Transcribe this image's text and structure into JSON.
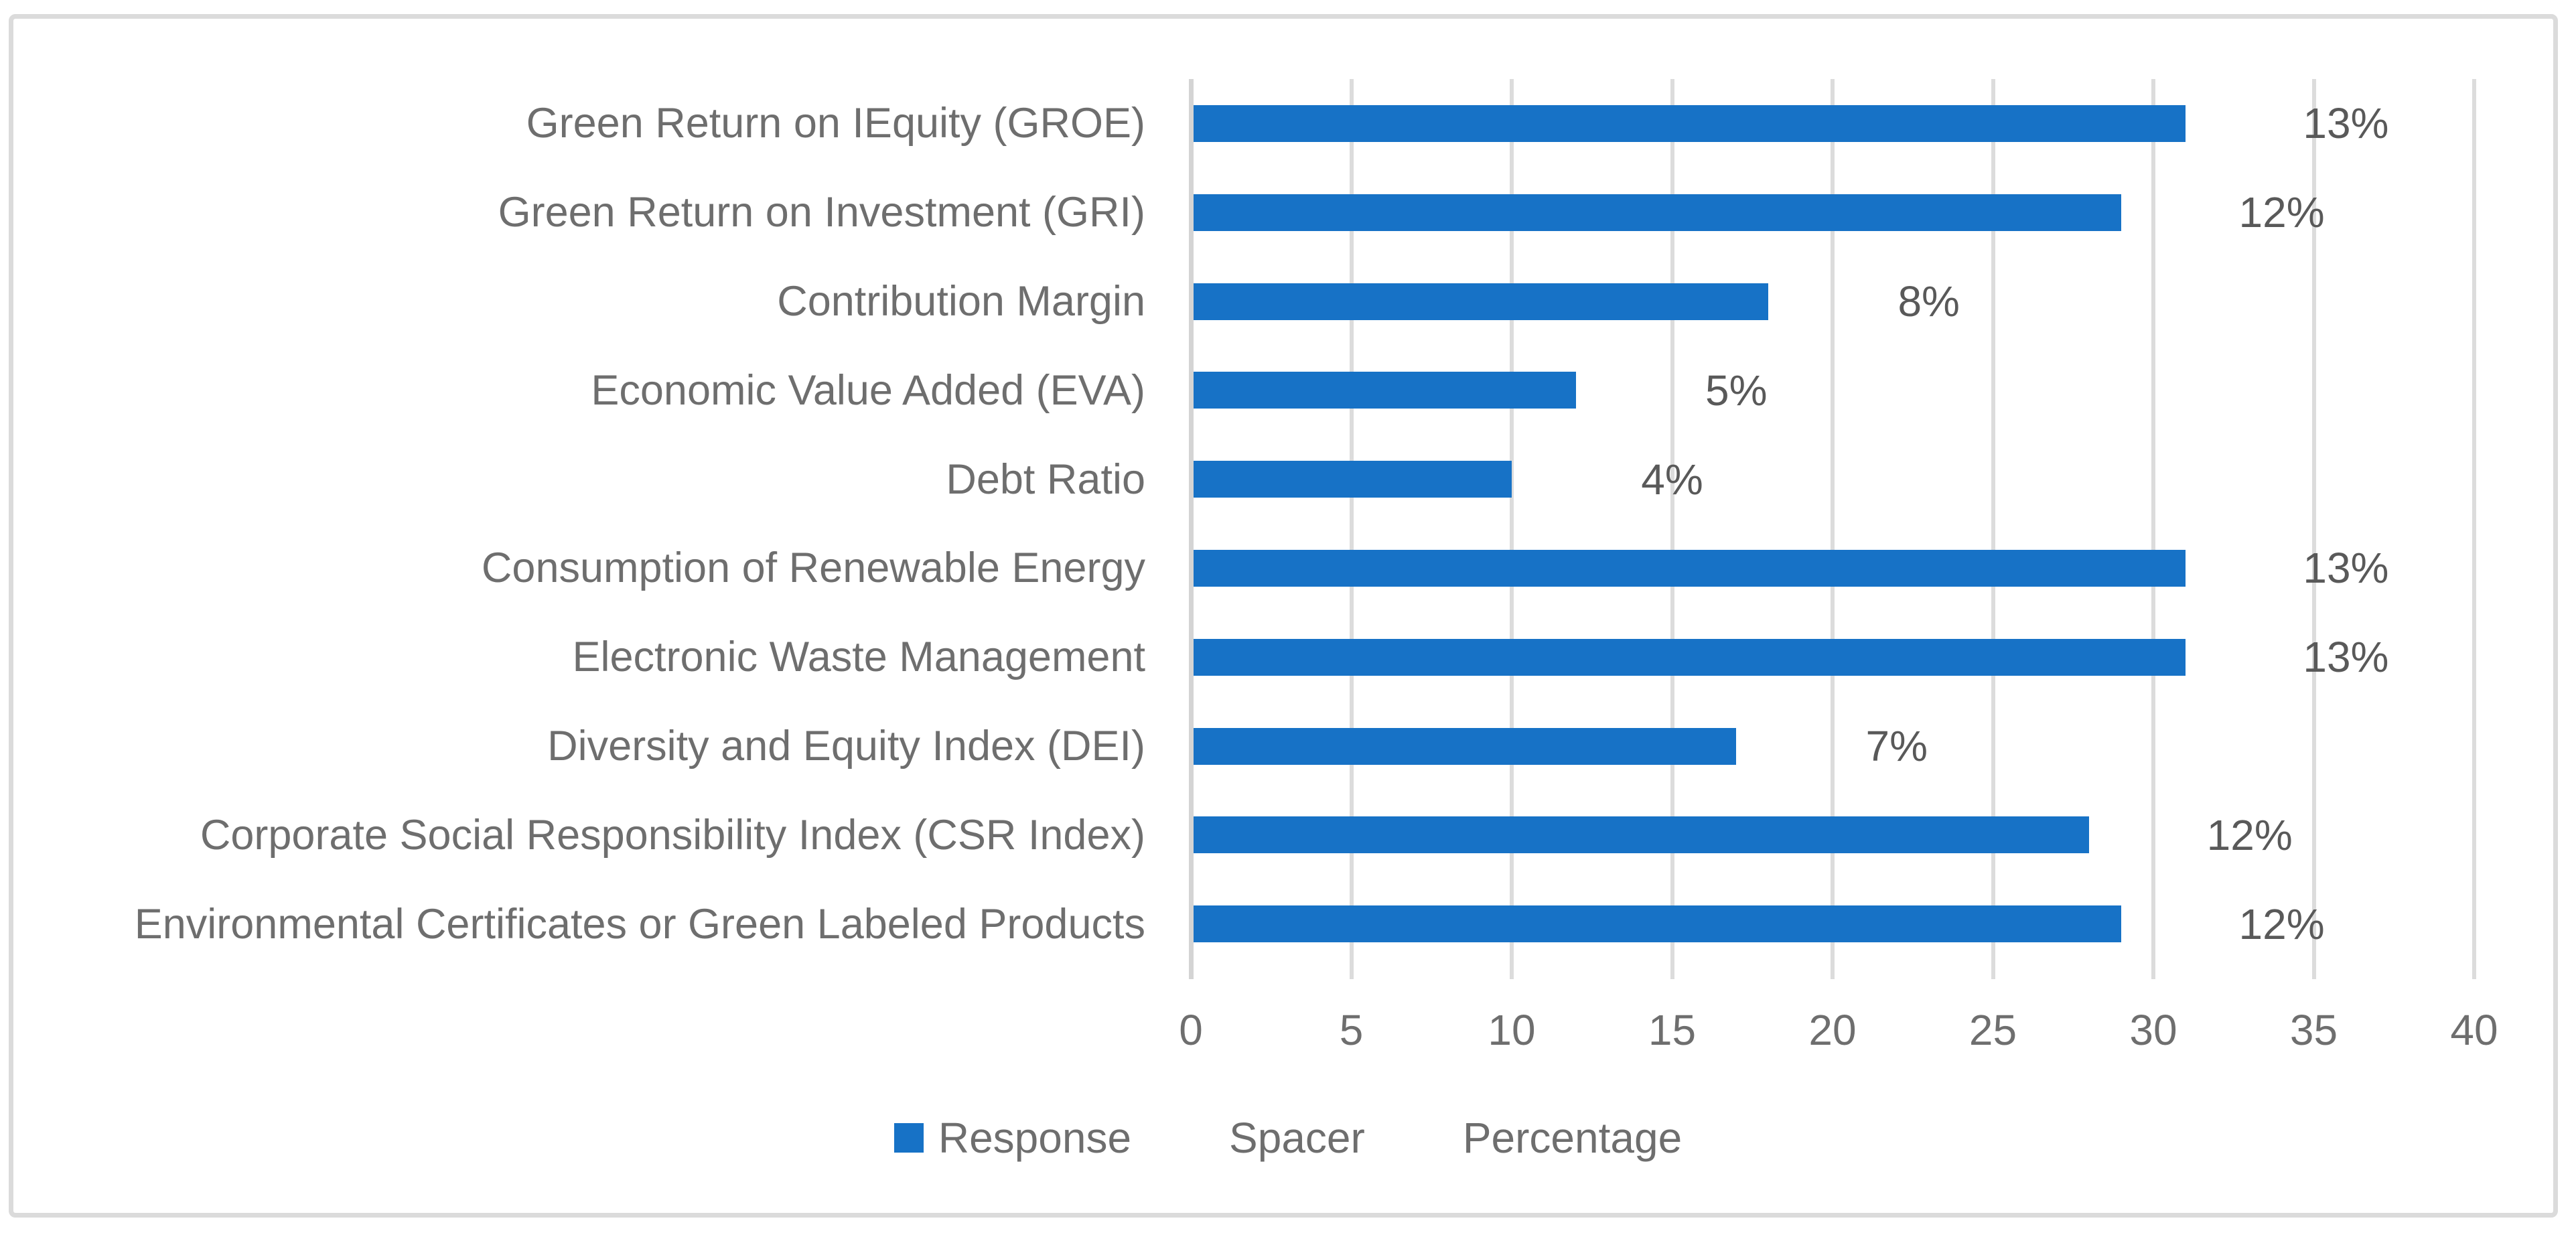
{
  "chart_data": {
    "type": "bar",
    "orientation": "horizontal",
    "title": "",
    "categories": [
      "Green Return on IEquity (GROE)",
      "Green Return on Investment (GRI)",
      "Contribution Margin",
      "Economic Value Added (EVA)",
      "Debt Ratio",
      "Consumption of Renewable Energy",
      "Electronic Waste Management",
      "Diversity and Equity Index (DEI)",
      "Corporate Social Responsibility Index (CSR Index)",
      "Environmental Certificates or Green Labeled Products"
    ],
    "series": [
      {
        "name": "Response",
        "values": [
          31,
          29,
          18,
          12,
          10,
          31,
          31,
          17,
          28,
          29
        ]
      }
    ],
    "data_labels": [
      "13%",
      "12%",
      "8%",
      "5%",
      "4%",
      "13%",
      "13%",
      "7%",
      "12%",
      "12%"
    ],
    "data_label_center_offset_units": 5,
    "x_ticks": [
      "0",
      "5",
      "10",
      "15",
      "20",
      "25",
      "30",
      "35",
      "40"
    ],
    "xlim": [
      0,
      40
    ],
    "grid": true,
    "legend_position": "bottom",
    "legend_entries": [
      {
        "label": "Response",
        "marker_visible": true
      },
      {
        "label": "Spacer",
        "marker_visible": false
      },
      {
        "label": "Percentage",
        "marker_visible": false
      }
    ],
    "colors": {
      "bar": "#1772C6",
      "gridline": "#DCDCDC",
      "axis_line": "#D4D4D4",
      "text": "#6E6E6E",
      "data_label_text": "#595959",
      "frame_border": "#DBDBDB",
      "background": "#FFFFFF"
    }
  }
}
